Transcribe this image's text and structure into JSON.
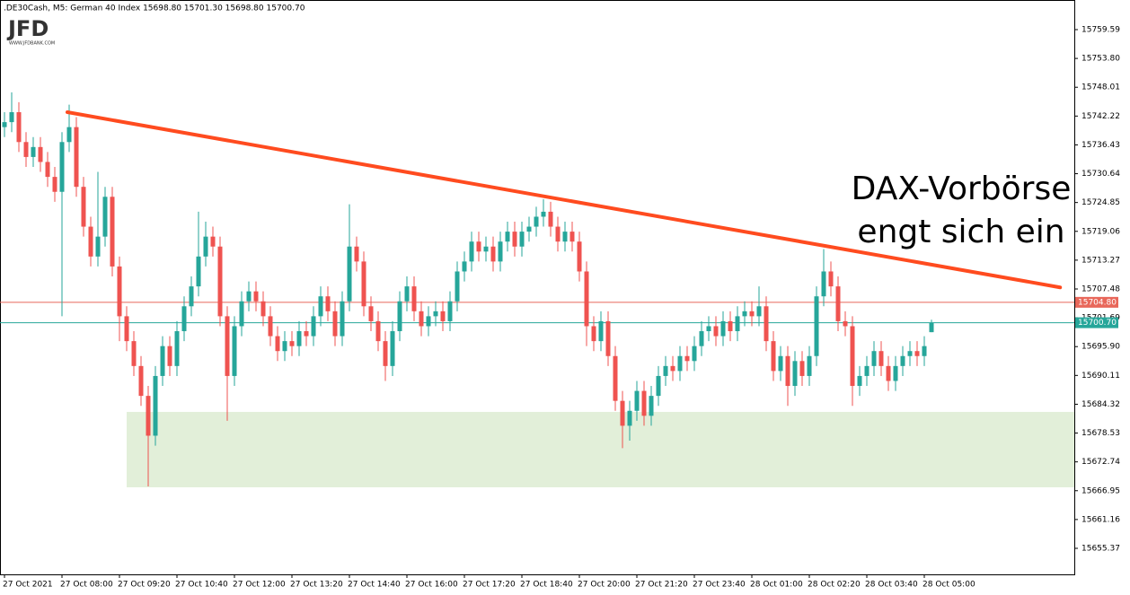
{
  "chart_data": {
    "type": "candlestick",
    "title": ".DE30Cash, M5:  German 40 Index  15698.80 15701.30 15698.80 15700.70",
    "logo": "JFD",
    "logo_subtitle": "WWW.JFDBANK.COM",
    "annotation": [
      "DAX-Vorbörse",
      "engt sich ein"
    ],
    "up_color": "#26a69a",
    "down_color": "#ef5350",
    "xlim": [
      -0.625,
      148.875
    ],
    "ylim": [
      15650.14,
      15765.54
    ],
    "yticks": [
      15759.59,
      {
        "value": 15753.8,
        "label": "15753.80"
      },
      15748.01,
      15742.22,
      15736.43,
      15730.64,
      15724.85,
      15719.06,
      15713.27,
      15707.48,
      15701.69,
      {
        "value": 15695.9,
        "label": "15695.90"
      },
      15690.11,
      15684.32,
      15678.53,
      15672.74,
      15666.95,
      15661.16,
      15655.37
    ],
    "categories": [
      "27 Oct 2021",
      null,
      null,
      null,
      null,
      null,
      null,
      null,
      "27 Oct 08:00",
      null,
      null,
      null,
      null,
      null,
      null,
      null,
      "27 Oct 09:20",
      null,
      null,
      null,
      null,
      null,
      null,
      null,
      "27 Oct 10:40",
      null,
      null,
      null,
      null,
      null,
      null,
      null,
      "27 Oct 12:00",
      null,
      null,
      null,
      null,
      null,
      null,
      null,
      "27 Oct 13:20",
      null,
      null,
      null,
      null,
      null,
      null,
      null,
      "27 Oct 14:40",
      null,
      null,
      null,
      null,
      null,
      null,
      null,
      "27 Oct 16:00",
      null,
      null,
      null,
      null,
      null,
      null,
      null,
      "27 Oct 17:20",
      null,
      null,
      null,
      null,
      null,
      null,
      null,
      "27 Oct 18:40",
      null,
      null,
      null,
      null,
      null,
      null,
      null,
      "27 Oct 20:00",
      null,
      null,
      null,
      null,
      null,
      null,
      null,
      "27 Oct 21:20",
      null,
      null,
      null,
      null,
      null,
      null,
      null,
      "27 Oct 23:40",
      null,
      null,
      null,
      null,
      null,
      null,
      null,
      "28 Oct 01:00",
      null,
      null,
      null,
      null,
      null,
      null,
      null,
      "28 Oct 02:20",
      null,
      null,
      null,
      null,
      null,
      null,
      null,
      "28 Oct 03:40",
      null,
      null,
      null,
      null,
      null,
      null,
      null,
      "28 Oct 05:00",
      null
    ],
    "open": [
      15740,
      15741,
      15743,
      15737,
      15734,
      15736,
      15733,
      15730,
      15727,
      15737,
      15740,
      15728,
      15720,
      15714,
      15718,
      15726,
      15712,
      15702,
      15697,
      15692,
      15686,
      15678,
      15690,
      15696,
      15692,
      15699,
      15704,
      15708,
      15714,
      15718,
      15716,
      15702,
      15690,
      15700,
      15705,
      15707,
      15705,
      15702,
      15698,
      15695,
      15697,
      15696,
      15699,
      15698,
      15702,
      15706,
      15703,
      15698,
      15705,
      15716,
      15713,
      15704,
      15701,
      15697,
      15692,
      15699,
      15705,
      15708,
      15703,
      15700,
      15702,
      15703,
      15701,
      15705,
      15711,
      15713,
      15717,
      15715,
      15716,
      15713,
      15717,
      15719,
      15716,
      15719,
      15720,
      15722,
      15723,
      15720,
      15717,
      15719,
      15717,
      15711,
      15700,
      15697,
      15701,
      15694,
      15685,
      15680,
      15683,
      15687,
      15682,
      15686,
      15690,
      15692,
      15691,
      15694,
      15693,
      15696,
      15699,
      15700,
      15698,
      15701,
      15699,
      15702,
      15703,
      15702,
      15704,
      15697,
      15691,
      15694,
      15688,
      15693,
      15690,
      15694,
      15706,
      15711,
      15708,
      15701,
      15700,
      15688,
      15690,
      15692,
      15695,
      15692,
      15689,
      15692,
      15694,
      15695,
      15694,
      15698.8
    ],
    "high": [
      15743,
      15747,
      15745,
      15739,
      15738,
      15738,
      15735,
      15732,
      15739,
      15744.5,
      15742,
      15730,
      15722,
      15731,
      15728,
      15728,
      15714,
      15704,
      15699,
      15694,
      15688,
      15692,
      15698,
      15698,
      15701,
      15706,
      15710,
      15723,
      15721,
      15720,
      15718,
      15704,
      15702,
      15707,
      15709,
      15709,
      15707,
      15704,
      15700,
      15699,
      15699,
      15701,
      15701,
      15704,
      15708,
      15708,
      15705,
      15707,
      15724.5,
      15718,
      15715,
      15706,
      15703,
      15699,
      15701,
      15707,
      15710,
      15710,
      15705,
      15704,
      15705,
      15705,
      15707,
      15713,
      15715,
      15719,
      15719,
      15718,
      15718,
      15719,
      15721,
      15721,
      15721,
      15722,
      15724,
      15725.5,
      15725,
      15722,
      15721,
      15721,
      15719,
      15713,
      15702,
      15703,
      15703,
      15696,
      15687,
      15685,
      15689,
      15689,
      15688,
      15692,
      15694,
      15694,
      15696,
      15696,
      15698,
      15701,
      15702,
      15702,
      15703,
      15703,
      15704,
      15705,
      15705,
      15708,
      15706,
      15699,
      15696,
      15696,
      15695,
      15695,
      15696,
      15708,
      15715.5,
      15713,
      15710,
      15703,
      15702,
      15692,
      15694,
      15697,
      15697,
      15694,
      15694,
      15696,
      15697,
      15697,
      15698,
      15701.3
    ],
    "low": [
      15738,
      15739,
      15735,
      15732,
      15732,
      15731,
      15728,
      15725,
      15702,
      15735,
      15726,
      15718,
      15712,
      15712,
      15716,
      15710,
      15697,
      15695,
      15690,
      15684,
      15667.8,
      15676,
      15688,
      15690,
      15690,
      15697,
      15702,
      15706,
      15712,
      15714,
      15700,
      15681,
      15688,
      15698,
      15703,
      15703,
      15700,
      15696,
      15693,
      15693,
      15694,
      15694,
      15696,
      15696,
      15700,
      15701,
      15696,
      15696,
      15703,
      15711,
      15702,
      15699,
      15695,
      15689,
      15690,
      15697,
      15703,
      15701,
      15698,
      15698,
      15700,
      15699,
      15699,
      15703,
      15709,
      15711,
      15713,
      15713,
      15711,
      15711,
      15715,
      15714,
      15714,
      15717,
      15718,
      15720,
      15718,
      15715,
      15715,
      15715,
      15709,
      15696,
      15695,
      15695,
      15692,
      15683,
      15675.5,
      15677,
      15681,
      15680,
      15680,
      15684,
      15688,
      15689,
      15689,
      15691,
      15691,
      15694,
      15697,
      15696,
      15696,
      15697,
      15697,
      15700,
      15700,
      15700,
      15695,
      15689,
      15689,
      15684,
      15686,
      15688,
      15688,
      15692,
      15704,
      15706,
      15699,
      15698,
      15684,
      15686,
      15688,
      15690,
      15690,
      15687,
      15687,
      15690,
      15692,
      15692,
      15692,
      15698.8
    ],
    "close": [
      15741,
      15743,
      15737,
      15734,
      15736,
      15733,
      15730,
      15727,
      15737,
      15740,
      15728,
      15720,
      15714,
      15718,
      15726,
      15712,
      15702,
      15697,
      15692,
      15686,
      15678,
      15690,
      15696,
      15692,
      15699,
      15704,
      15708,
      15714,
      15718,
      15716,
      15702,
      15690,
      15700,
      15705,
      15707,
      15705,
      15702,
      15698,
      15695,
      15697,
      15696,
      15699,
      15698,
      15702,
      15706,
      15703,
      15698,
      15705,
      15716,
      15713,
      15704,
      15701,
      15697,
      15692,
      15699,
      15705,
      15708,
      15703,
      15700,
      15702,
      15703,
      15701,
      15705,
      15711,
      15713,
      15717,
      15715,
      15716,
      15713,
      15717,
      15719,
      15716,
      15719,
      15720,
      15722,
      15723,
      15720,
      15717,
      15719,
      15717,
      15711,
      15700,
      15697,
      15701,
      15694,
      15685,
      15680,
      15683,
      15687,
      15682,
      15686,
      15690,
      15692,
      15691,
      15694,
      15693,
      15696,
      15699,
      15700,
      15698,
      15701,
      15699,
      15702,
      15703,
      15702,
      15704,
      15697,
      15691,
      15694,
      15688,
      15693,
      15690,
      15694,
      15706,
      15711,
      15708,
      15701,
      15700,
      15688,
      15690,
      15692,
      15695,
      15692,
      15689,
      15692,
      15694,
      15695,
      15694,
      15696,
      15700.7
    ],
    "hlines": [
      {
        "value": 15704.8,
        "label": "15704.80",
        "color": "#e8675a"
      },
      {
        "value": 15700.7,
        "label": "15700.70",
        "color": "#26a69a"
      }
    ],
    "zone": {
      "x": [
        17,
        148.875
      ],
      "y": [
        15667.63,
        15682.78
      ],
      "color": "#e2efd9"
    },
    "trendline": {
      "x": [
        8.75,
        146.9
      ],
      "y": [
        15743.0,
        15707.8
      ],
      "color": "#ff4b1f"
    }
  }
}
